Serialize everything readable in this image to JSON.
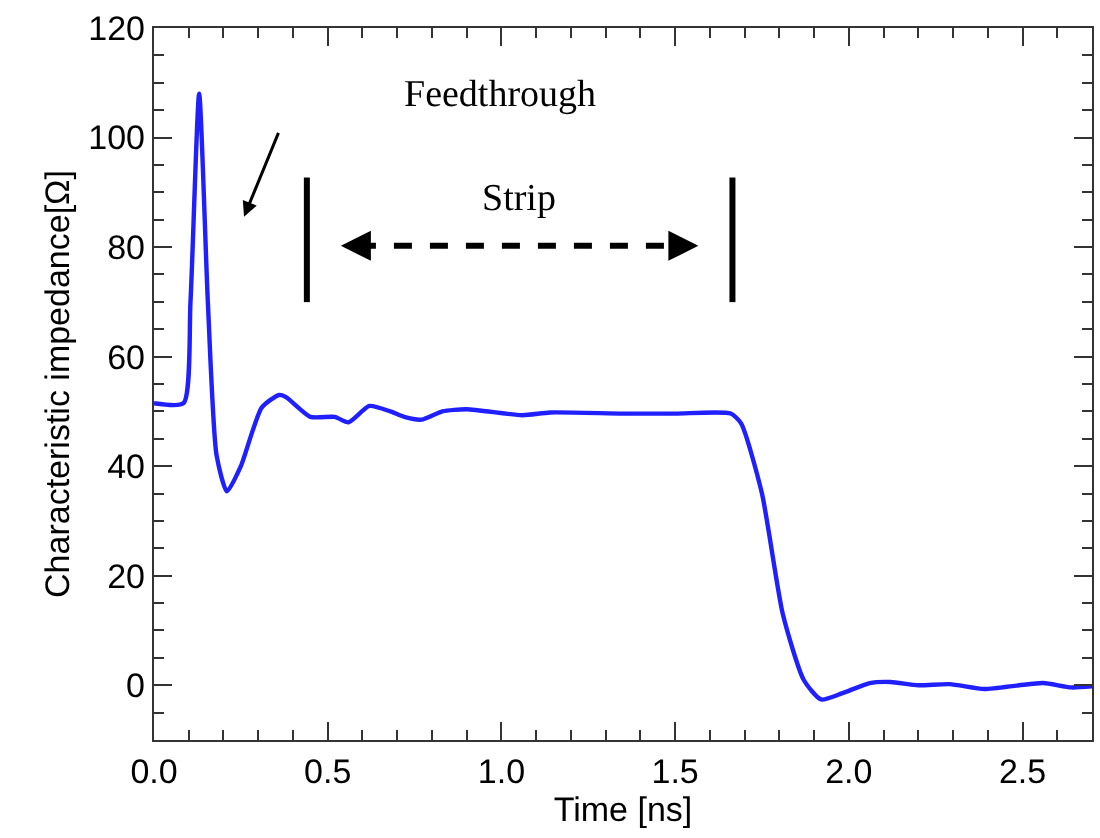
{
  "chart_data": {
    "type": "line",
    "xlabel": "Time [ns]",
    "ylabel": "Characteristic impedance[Ω]",
    "x": [
      0,
      0.085,
      0.105,
      0.13,
      0.155,
      0.18,
      0.21,
      0.25,
      0.31,
      0.36,
      0.38,
      0.45,
      0.52,
      0.56,
      0.62,
      0.68,
      0.72,
      0.77,
      0.83,
      0.9,
      1.06,
      1.14,
      1.35,
      1.5,
      1.66,
      1.69,
      1.75,
      1.81,
      1.87,
      1.92,
      1.98,
      2.06,
      2.12,
      2.2,
      2.29,
      2.39,
      2.49,
      2.56,
      2.64,
      2.7
    ],
    "series": [
      {
        "color": "#1f1fff",
        "values": [
          51.5,
          51.5,
          70,
          108,
          70,
          42,
          35.4,
          40,
          50.7,
          53,
          52.6,
          49,
          49,
          48,
          51,
          50,
          49,
          48.5,
          50,
          50.4,
          49.3,
          49.8,
          49.6,
          49.6,
          49.6,
          47.8,
          35,
          13,
          1,
          -2.6,
          -1.5,
          0.4,
          0.6,
          0,
          0.2,
          -0.7,
          0,
          0.4,
          -0.4,
          -0.2
        ]
      }
    ],
    "xlim": [
      0,
      2.7
    ],
    "ylim": [
      -10,
      120
    ],
    "xticks": [
      {
        "value": 0,
        "label": "0.0"
      },
      0.5,
      {
        "value": 1,
        "label": "1.0"
      },
      1.5,
      {
        "value": 2,
        "label": "2.0"
      },
      2.5
    ],
    "yticks": [
      0,
      20,
      40,
      60,
      80,
      100,
      120
    ],
    "annotations": [
      "Feedthrough",
      "Strip"
    ],
    "ref_lines": [
      {
        "axis": "x",
        "value": 0.44,
        "color": "#000000"
      },
      {
        "axis": "x",
        "value": 1.665,
        "color": "#000000"
      }
    ],
    "marker": "none",
    "line_style": "solid"
  }
}
